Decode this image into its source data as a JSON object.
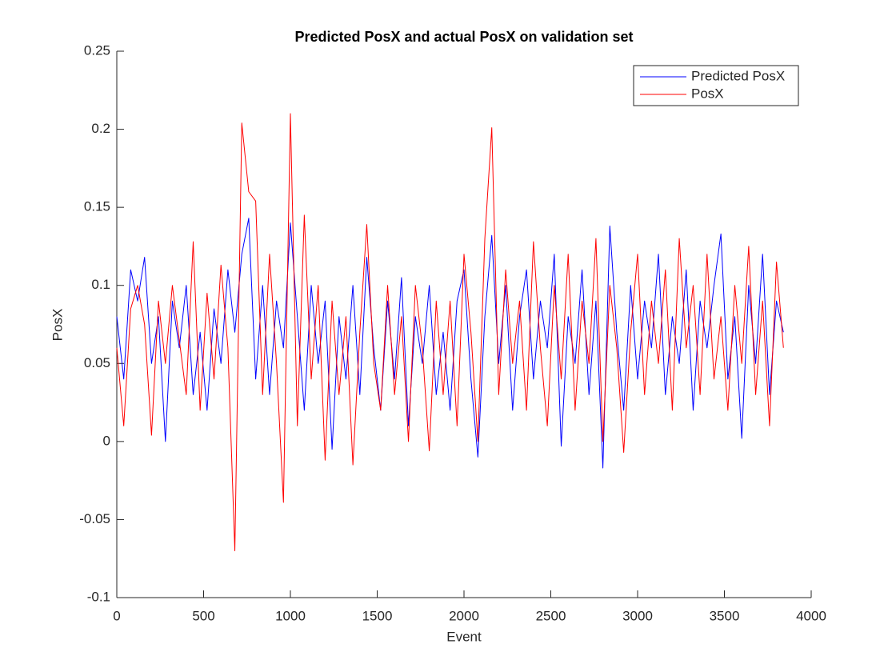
{
  "chart_data": {
    "type": "line",
    "title": "Predicted PosX and actual PosX on validation set",
    "x_label": "Event",
    "y_label": "PosX",
    "xlim": [
      0,
      4000
    ],
    "xticks": [
      0,
      500,
      1000,
      1500,
      2000,
      2500,
      3000,
      3500,
      4000
    ],
    "ylim": [
      -0.1,
      0.25
    ],
    "yticks": [
      -0.1,
      -0.05,
      0,
      0.05,
      0.1,
      0.15,
      0.2,
      0.25
    ],
    "legend": "upper right",
    "x": [
      0,
      40,
      80,
      120,
      160,
      200,
      240,
      280,
      320,
      360,
      400,
      440,
      480,
      520,
      560,
      600,
      640,
      680,
      720,
      760,
      800,
      840,
      880,
      920,
      960,
      1000,
      1040,
      1080,
      1120,
      1160,
      1200,
      1240,
      1280,
      1320,
      1360,
      1400,
      1440,
      1480,
      1520,
      1560,
      1600,
      1640,
      1680,
      1720,
      1760,
      1800,
      1840,
      1880,
      1920,
      1960,
      2000,
      2040,
      2080,
      2120,
      2160,
      2200,
      2240,
      2280,
      2320,
      2360,
      2400,
      2440,
      2480,
      2520,
      2560,
      2600,
      2640,
      2680,
      2720,
      2760,
      2800,
      2840,
      2880,
      2920,
      2960,
      3000,
      3040,
      3080,
      3120,
      3160,
      3200,
      3240,
      3280,
      3320,
      3360,
      3400,
      3440,
      3480,
      3520,
      3560,
      3600,
      3640,
      3680,
      3720,
      3760,
      3800,
      3840
    ],
    "series": [
      {
        "name": "Predicted PosX",
        "color": "#0000ff",
        "values": [
          0.08,
          0.04,
          0.11,
          0.09,
          0.118,
          0.05,
          0.08,
          0.0,
          0.09,
          0.06,
          0.1,
          0.03,
          0.07,
          0.02,
          0.085,
          0.05,
          0.11,
          0.07,
          0.12,
          0.143,
          0.04,
          0.1,
          0.03,
          0.09,
          0.06,
          0.14,
          0.08,
          0.02,
          0.1,
          0.05,
          0.09,
          -0.005,
          0.08,
          0.04,
          0.1,
          0.03,
          0.118,
          0.06,
          0.02,
          0.09,
          0.04,
          0.105,
          0.01,
          0.08,
          0.05,
          0.1,
          0.03,
          0.07,
          0.02,
          0.09,
          0.11,
          0.04,
          -0.01,
          0.08,
          0.132,
          0.05,
          0.1,
          0.02,
          0.08,
          0.11,
          0.04,
          0.09,
          0.06,
          0.12,
          -0.003,
          0.08,
          0.05,
          0.11,
          0.03,
          0.09,
          -0.017,
          0.138,
          0.07,
          0.02,
          0.1,
          0.04,
          0.09,
          0.06,
          0.12,
          0.03,
          0.08,
          0.05,
          0.11,
          0.02,
          0.09,
          0.06,
          0.1,
          0.133,
          0.04,
          0.08,
          0.002,
          0.1,
          0.05,
          0.12,
          0.03,
          0.09,
          0.07
        ]
      },
      {
        "name": "PosX",
        "color": "#ff0000",
        "values": [
          0.06,
          0.01,
          0.085,
          0.1,
          0.075,
          0.004,
          0.09,
          0.05,
          0.1,
          0.065,
          0.03,
          0.128,
          0.02,
          0.095,
          0.04,
          0.113,
          0.06,
          -0.07,
          0.204,
          0.16,
          0.154,
          0.03,
          0.12,
          0.05,
          -0.039,
          0.21,
          0.01,
          0.145,
          0.04,
          0.1,
          -0.012,
          0.09,
          0.03,
          0.08,
          -0.015,
          0.07,
          0.139,
          0.05,
          0.02,
          0.1,
          0.03,
          0.08,
          0.0,
          0.1,
          0.06,
          -0.006,
          0.09,
          0.03,
          0.09,
          0.01,
          0.12,
          0.07,
          0.0,
          0.13,
          0.201,
          0.03,
          0.11,
          0.05,
          0.09,
          0.02,
          0.128,
          0.06,
          0.01,
          0.1,
          0.04,
          0.12,
          0.02,
          0.09,
          0.05,
          0.13,
          0.0,
          0.1,
          0.06,
          -0.007,
          0.07,
          0.12,
          0.03,
          0.09,
          0.05,
          0.11,
          0.02,
          0.13,
          0.06,
          0.1,
          0.03,
          0.12,
          0.04,
          0.08,
          0.02,
          0.1,
          0.05,
          0.125,
          0.03,
          0.09,
          0.01,
          0.115,
          0.06
        ]
      }
    ]
  }
}
